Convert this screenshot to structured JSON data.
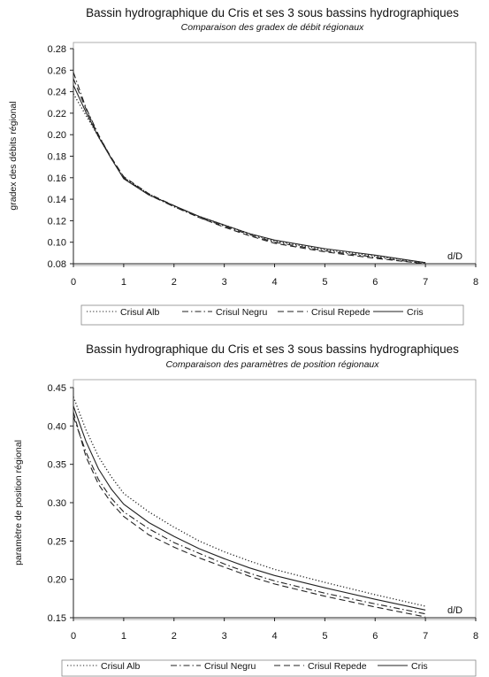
{
  "chart_data": [
    {
      "type": "line",
      "title": "Bassin hydrographique du Cris et ses 3 sous bassins hydrographiques",
      "subtitle": "Comparaison des gradex de débit régionaux",
      "xlabel": "d/D",
      "ylabel": "gradex des débits régional",
      "xlim": [
        0,
        8
      ],
      "ylim": [
        0.08,
        0.28
      ],
      "xticks": [
        "0",
        "1",
        "2",
        "3",
        "4",
        "5",
        "6",
        "7",
        "8"
      ],
      "yticks": [
        "0.08",
        "0.10",
        "0.12",
        "0.14",
        "0.16",
        "0.18",
        "0.20",
        "0.22",
        "0.24",
        "0.26",
        "0.28"
      ],
      "grid": false,
      "legend_position": "bottom",
      "x": [
        0,
        0.25,
        0.5,
        0.75,
        1,
        1.5,
        2,
        2.5,
        3,
        3.5,
        4,
        5,
        6,
        7
      ],
      "series": [
        {
          "name": "Crisul Alb",
          "style": "dotted",
          "values": [
            0.238,
            0.218,
            0.198,
            0.178,
            0.16,
            0.145,
            0.133,
            0.124,
            0.116,
            0.108,
            0.101,
            0.093,
            0.087,
            0.081
          ]
        },
        {
          "name": "Crisul Negru",
          "style": "dashdot",
          "values": [
            0.258,
            0.225,
            0.2,
            0.178,
            0.16,
            0.144,
            0.133,
            0.123,
            0.115,
            0.107,
            0.1,
            0.092,
            0.086,
            0.08
          ]
        },
        {
          "name": "Crisul Repede",
          "style": "dashed",
          "values": [
            0.252,
            0.224,
            0.199,
            0.179,
            0.161,
            0.145,
            0.134,
            0.123,
            0.114,
            0.106,
            0.099,
            0.091,
            0.085,
            0.08
          ]
        },
        {
          "name": "Cris",
          "style": "solid",
          "values": [
            0.246,
            0.221,
            0.198,
            0.178,
            0.159,
            0.144,
            0.134,
            0.124,
            0.116,
            0.108,
            0.102,
            0.094,
            0.088,
            0.081
          ]
        }
      ]
    },
    {
      "type": "line",
      "title": "Bassin hydrographique du Cris et ses 3 sous bassins hydrographiques",
      "subtitle": "Comparaison des paramètres de position régionaux",
      "xlabel": "d/D",
      "ylabel": "paramètre de position régional",
      "xlim": [
        0,
        8
      ],
      "ylim": [
        0.15,
        0.45
      ],
      "xticks": [
        "0",
        "1",
        "2",
        "3",
        "4",
        "5",
        "6",
        "7",
        "8"
      ],
      "yticks": [
        "0.15",
        "0.20",
        "0.25",
        "0.30",
        "0.35",
        "0.40",
        "0.45"
      ],
      "grid": false,
      "legend_position": "bottom",
      "x": [
        0,
        0.25,
        0.5,
        0.75,
        1,
        1.5,
        2,
        2.5,
        3,
        3.5,
        4,
        5,
        6,
        7
      ],
      "series": [
        {
          "name": "Crisul Alb",
          "style": "dotted",
          "values": [
            0.438,
            0.395,
            0.36,
            0.334,
            0.312,
            0.288,
            0.268,
            0.25,
            0.236,
            0.224,
            0.213,
            0.196,
            0.18,
            0.165
          ]
        },
        {
          "name": "Crisul Negru",
          "style": "dashdot",
          "values": [
            0.412,
            0.366,
            0.33,
            0.306,
            0.288,
            0.266,
            0.248,
            0.234,
            0.22,
            0.208,
            0.198,
            0.182,
            0.168,
            0.155
          ]
        },
        {
          "name": "Crisul Repede",
          "style": "dashed",
          "values": [
            0.418,
            0.36,
            0.324,
            0.3,
            0.282,
            0.258,
            0.242,
            0.228,
            0.216,
            0.204,
            0.194,
            0.178,
            0.164,
            0.151
          ]
        },
        {
          "name": "Cris",
          "style": "solid",
          "values": [
            0.426,
            0.38,
            0.344,
            0.318,
            0.298,
            0.274,
            0.256,
            0.24,
            0.227,
            0.215,
            0.205,
            0.189,
            0.174,
            0.16
          ]
        }
      ]
    }
  ]
}
